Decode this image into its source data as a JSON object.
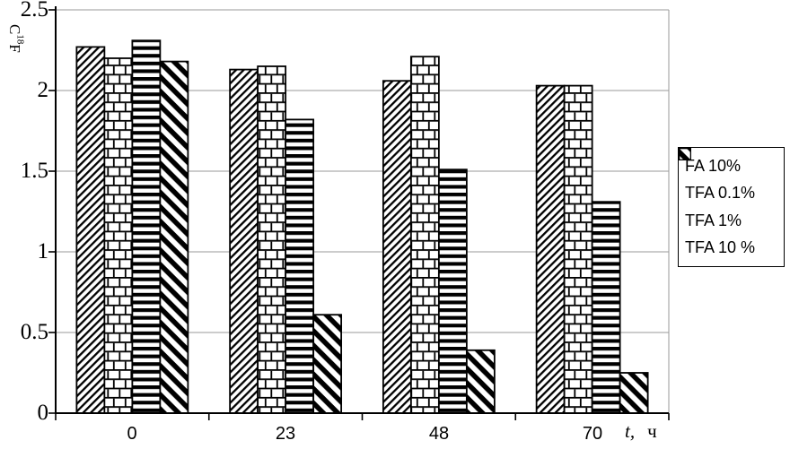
{
  "chart_data": {
    "type": "bar",
    "title": "",
    "categories": [
      "0",
      "23",
      "48",
      "70"
    ],
    "series": [
      {
        "name": "FA 10%",
        "pattern": "diagonal-forward-hatch",
        "values": [
          2.27,
          2.13,
          2.06,
          2.03
        ]
      },
      {
        "name": "TFA 0.1%",
        "pattern": "brick",
        "values": [
          2.2,
          2.15,
          2.21,
          2.03
        ]
      },
      {
        "name": "TFA 1%",
        "pattern": "horizontal-stripes",
        "values": [
          2.31,
          1.82,
          1.51,
          1.31
        ]
      },
      {
        "name": "TFA 10 %",
        "pattern": "diagonal-back-hatch",
        "values": [
          2.18,
          0.61,
          0.39,
          0.25
        ]
      }
    ],
    "xlabel": "t, ч",
    "xlabel_parts": {
      "symbol": "t,",
      "unit": "ч"
    },
    "ylabel": "C¹⁸F",
    "ylabel_parts": {
      "base": "C",
      "sup": "18",
      "suffix": "F"
    },
    "ylim": [
      0,
      2.5
    ],
    "yticks": [
      "0",
      "0.5",
      "1",
      "1.5",
      "2",
      "2.5"
    ],
    "grid": true,
    "legend_position": "right",
    "colors": {
      "ink": "#000000",
      "grid": "#9a9a9a",
      "background": "#ffffff"
    }
  }
}
